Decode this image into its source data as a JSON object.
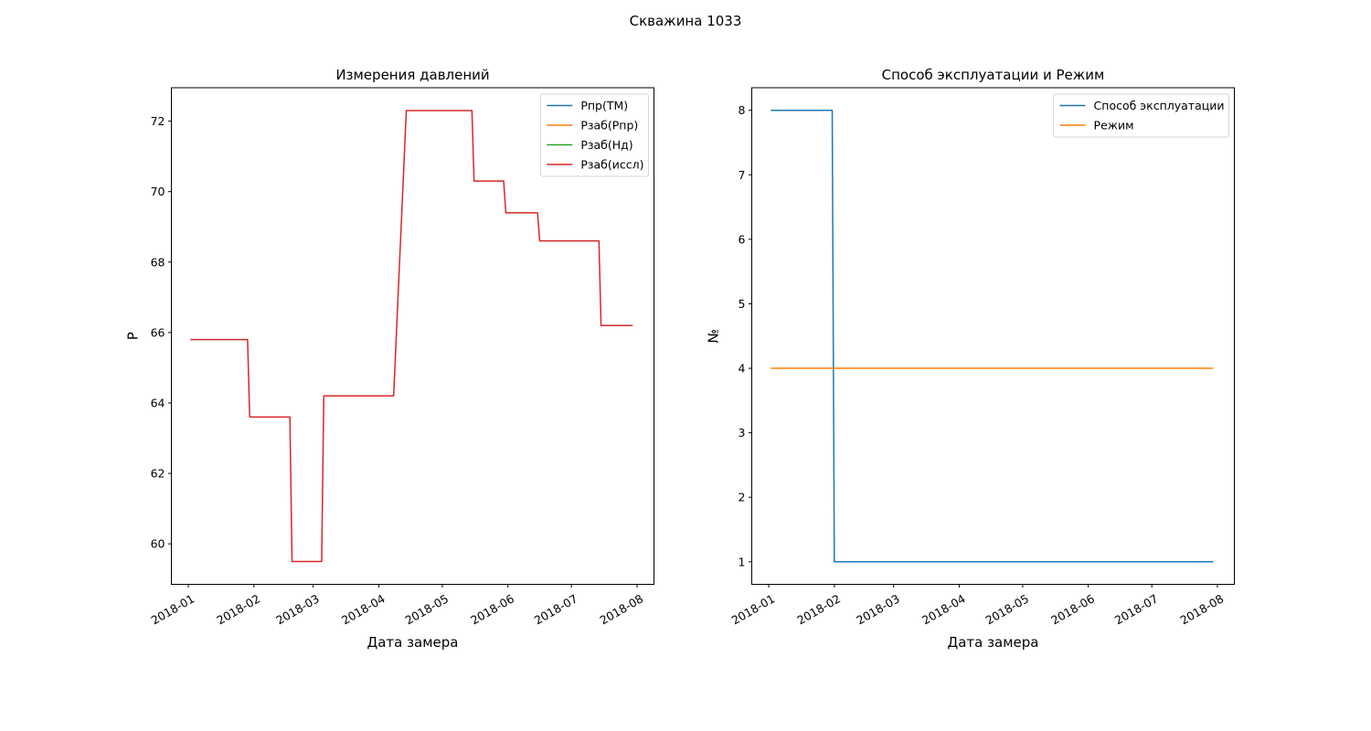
{
  "figure": {
    "suptitle": "Скважина 1033"
  },
  "chart_data": [
    {
      "type": "line",
      "title": "Измерения давлений",
      "xlabel": "Дата замера",
      "ylabel": "P",
      "x_axis": "date",
      "xlim": [
        "2017-12-24",
        "2018-08-09"
      ],
      "ylim": [
        58.85,
        72.95
      ],
      "x_ticks": [
        "2018-01-01",
        "2018-02-01",
        "2018-03-01",
        "2018-04-01",
        "2018-05-01",
        "2018-06-01",
        "2018-07-01",
        "2018-08-01"
      ],
      "x_tick_labels": [
        "2018-01",
        "2018-02",
        "2018-03",
        "2018-04",
        "2018-05",
        "2018-06",
        "2018-07",
        "2018-08"
      ],
      "y_ticks": [
        60,
        62,
        64,
        66,
        68,
        70,
        72
      ],
      "y_tick_labels": [
        "60",
        "62",
        "64",
        "66",
        "68",
        "70",
        "72"
      ],
      "legend_position": "top-right",
      "grid": false,
      "series": [
        {
          "name": "Рпр(ТМ)",
          "color": "#1f77b4",
          "x": [],
          "y": []
        },
        {
          "name": "Рзаб(Рпр)",
          "color": "#ff7f0e",
          "x": [],
          "y": []
        },
        {
          "name": "Рзаб(Нд)",
          "color": "#2ca02c",
          "x": [],
          "y": []
        },
        {
          "name": "Рзаб(иссл)",
          "color": "#d62728",
          "x": [
            "2018-01-02",
            "2018-01-29",
            "2018-01-30",
            "2018-02-18",
            "2018-02-19",
            "2018-03-05",
            "2018-03-06",
            "2018-04-08",
            "2018-04-14",
            "2018-05-15",
            "2018-05-16",
            "2018-05-30",
            "2018-05-31",
            "2018-06-15",
            "2018-06-16",
            "2018-07-14",
            "2018-07-15",
            "2018-07-30"
          ],
          "y": [
            65.8,
            65.8,
            63.6,
            63.6,
            59.5,
            59.5,
            64.2,
            64.2,
            72.3,
            72.3,
            70.3,
            70.3,
            69.4,
            69.4,
            68.6,
            68.6,
            66.2,
            66.2
          ]
        }
      ]
    },
    {
      "type": "line",
      "title": "Способ эксплуатации и Режим",
      "xlabel": "Дата замера",
      "ylabel": "№",
      "x_axis": "date",
      "xlim": [
        "2017-12-24",
        "2018-08-09"
      ],
      "ylim": [
        0.65,
        8.35
      ],
      "x_ticks": [
        "2018-01-01",
        "2018-02-01",
        "2018-03-01",
        "2018-04-01",
        "2018-05-01",
        "2018-06-01",
        "2018-07-01",
        "2018-08-01"
      ],
      "x_tick_labels": [
        "2018-01",
        "2018-02",
        "2018-03",
        "2018-04",
        "2018-05",
        "2018-06",
        "2018-07",
        "2018-08"
      ],
      "y_ticks": [
        1,
        2,
        3,
        4,
        5,
        6,
        7,
        8
      ],
      "y_tick_labels": [
        "1",
        "2",
        "3",
        "4",
        "5",
        "6",
        "7",
        "8"
      ],
      "legend_position": "top-right",
      "grid": false,
      "series": [
        {
          "name": "Способ эксплуатации",
          "color": "#1f77b4",
          "x": [
            "2018-01-02",
            "2018-01-31",
            "2018-02-01",
            "2018-07-30"
          ],
          "y": [
            8,
            8,
            1,
            1
          ]
        },
        {
          "name": "Режим",
          "color": "#ff7f0e",
          "x": [
            "2018-01-02",
            "2018-07-30"
          ],
          "y": [
            4,
            4
          ]
        }
      ]
    }
  ]
}
